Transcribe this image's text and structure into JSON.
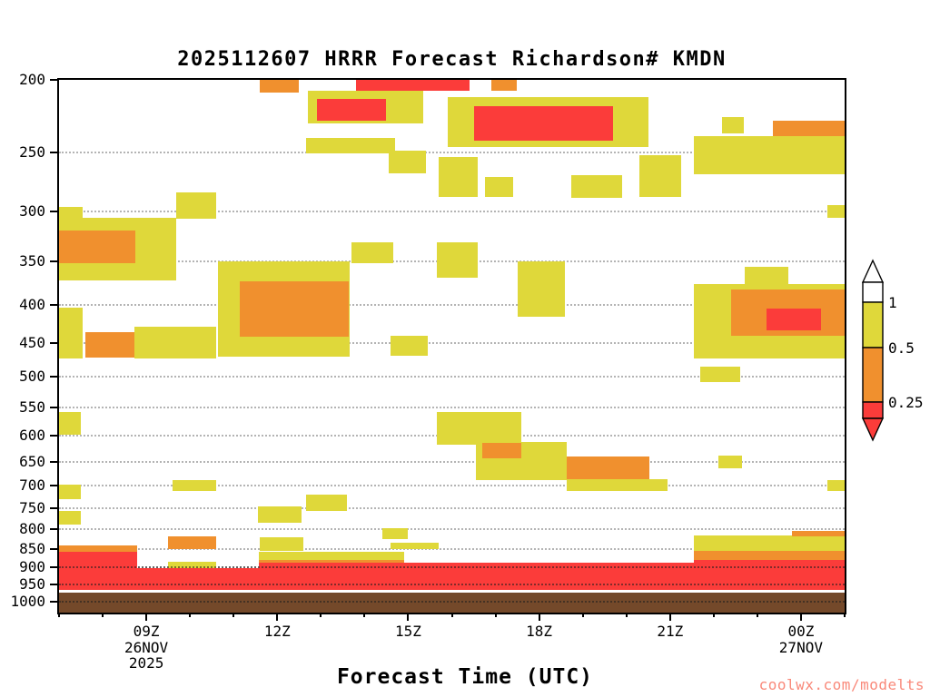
{
  "title": "2025112607 HRRR Forecast Richardson# KMDN",
  "xlabel": "Forecast Time (UTC)",
  "watermark": "coolwx.com/modelts",
  "colors": {
    "yellow": "#dfd83a",
    "orange": "#f0902e",
    "red": "#fb3c3a",
    "ground": "#74492a",
    "white_line": "#ffffff",
    "axis": "#000000",
    "watermark": "#f9897a"
  },
  "chart_data": {
    "type": "heatmap",
    "title": "2025112607 HRRR Forecast Richardson# KMDN",
    "xlabel": "Forecast Time (UTC)",
    "x_axis": {
      "unit": "hours UTC since 00Z 26 Nov 2025",
      "range": [
        7,
        25
      ],
      "major_ticks": [
        {
          "hour": 9,
          "label": "09Z",
          "sub": "26NOV",
          "sub2": "2025"
        },
        {
          "hour": 12,
          "label": "12Z"
        },
        {
          "hour": 15,
          "label": "15Z"
        },
        {
          "hour": 18,
          "label": "18Z"
        },
        {
          "hour": 21,
          "label": "21Z"
        },
        {
          "hour": 24,
          "label": "00Z",
          "sub": "27NOV"
        }
      ]
    },
    "y_axis": {
      "unit": "hPa",
      "scale": "log",
      "range": [
        200,
        1035
      ],
      "ticks": [
        200,
        250,
        300,
        350,
        400,
        450,
        500,
        550,
        600,
        650,
        700,
        750,
        800,
        850,
        900,
        950,
        1000
      ],
      "overlay_gridlines": [
        900,
        950,
        1000
      ]
    },
    "legend": {
      "labels": [
        "1",
        "0.5",
        "0.25"
      ],
      "segment_colors": [
        "white",
        "yellow",
        "orange",
        "red"
      ],
      "bins": [
        {
          "color": "white",
          "range": "> 1"
        },
        {
          "color": "yellow",
          "range": "0.5 to 1"
        },
        {
          "color": "orange",
          "range": "0.25 to 0.5"
        },
        {
          "color": "red",
          "range": "< 0.25"
        },
        {
          "color": "ground",
          "range": "below surface"
        }
      ]
    },
    "cells": [
      {
        "c": "o",
        "t": [
          11.6,
          12.5
        ],
        "p": [
          200,
          208
        ]
      },
      {
        "c": "r",
        "t": [
          13.8,
          16.4
        ],
        "p": [
          200,
          207
        ]
      },
      {
        "c": "o",
        "t": [
          16.9,
          17.5
        ],
        "p": [
          200,
          207
        ]
      },
      {
        "c": "y",
        "t": [
          12.7,
          15.35
        ],
        "p": [
          207,
          229
        ]
      },
      {
        "c": "r",
        "t": [
          12.9,
          14.5
        ],
        "p": [
          212,
          227
        ]
      },
      {
        "c": "y",
        "t": [
          12.66,
          14.7
        ],
        "p": [
          239,
          251
        ]
      },
      {
        "c": "y",
        "t": [
          15.9,
          20.5
        ],
        "p": [
          211,
          246
        ]
      },
      {
        "c": "r",
        "t": [
          16.5,
          19.7
        ],
        "p": [
          217,
          241
        ]
      },
      {
        "c": "y",
        "t": [
          14.55,
          15.4
        ],
        "p": [
          249,
          267
        ]
      },
      {
        "c": "y",
        "t": [
          15.7,
          16.6
        ],
        "p": [
          254,
          287
        ]
      },
      {
        "c": "y",
        "t": [
          16.75,
          17.4
        ],
        "p": [
          270,
          287
        ]
      },
      {
        "c": "y",
        "t": [
          18.74,
          19.9
        ],
        "p": [
          268,
          288
        ]
      },
      {
        "c": "y",
        "t": [
          20.3,
          21.25
        ],
        "p": [
          252,
          287
        ]
      },
      {
        "c": "y",
        "t": [
          22.2,
          22.7
        ],
        "p": [
          224,
          236
        ]
      },
      {
        "c": "o",
        "t": [
          23.35,
          25.0
        ],
        "p": [
          227,
          248
        ]
      },
      {
        "c": "y",
        "t": [
          21.55,
          25.0
        ],
        "p": [
          238,
          268
        ]
      },
      {
        "c": "y",
        "t": [
          24.6,
          25.0
        ],
        "p": [
          294,
          306
        ]
      },
      {
        "c": "y",
        "t": [
          7.0,
          7.55
        ],
        "p": [
          296,
          308
        ]
      },
      {
        "c": "y",
        "t": [
          9.68,
          10.6
        ],
        "p": [
          283,
          307
        ]
      },
      {
        "c": "y",
        "t": [
          7.0,
          9.68
        ],
        "p": [
          306,
          371
        ]
      },
      {
        "c": "o",
        "t": [
          7.0,
          8.75
        ],
        "p": [
          318,
          352
        ]
      },
      {
        "c": "y",
        "t": [
          10.65,
          13.65
        ],
        "p": [
          350,
          470
        ]
      },
      {
        "c": "o",
        "t": [
          11.15,
          13.65
        ],
        "p": [
          372,
          442
        ]
      },
      {
        "c": "y",
        "t": [
          7.0,
          7.55
        ],
        "p": [
          404,
          473
        ]
      },
      {
        "c": "o",
        "t": [
          7.6,
          8.72
        ],
        "p": [
          436,
          471
        ]
      },
      {
        "c": "y",
        "t": [
          8.72,
          10.6
        ],
        "p": [
          428,
          472
        ]
      },
      {
        "c": "y",
        "t": [
          13.7,
          14.65
        ],
        "p": [
          330,
          352
        ]
      },
      {
        "c": "y",
        "t": [
          15.66,
          16.6
        ],
        "p": [
          330,
          368
        ]
      },
      {
        "c": "y",
        "t": [
          17.5,
          18.6
        ],
        "p": [
          350,
          415
        ]
      },
      {
        "c": "y",
        "t": [
          14.6,
          15.45
        ],
        "p": [
          440,
          468
        ]
      },
      {
        "c": "y",
        "t": [
          22.7,
          23.7
        ],
        "p": [
          356,
          376
        ]
      },
      {
        "c": "y",
        "t": [
          21.55,
          25.0
        ],
        "p": [
          375,
          473
        ]
      },
      {
        "c": "o",
        "t": [
          22.4,
          25.0
        ],
        "p": [
          382,
          440
        ]
      },
      {
        "c": "r",
        "t": [
          23.2,
          24.45
        ],
        "p": [
          405,
          433
        ]
      },
      {
        "c": "y",
        "t": [
          21.68,
          22.6
        ],
        "p": [
          485,
          508
        ]
      },
      {
        "c": "y",
        "t": [
          7.0,
          7.5
        ],
        "p": [
          558,
          598
        ]
      },
      {
        "c": "y",
        "t": [
          7.0,
          7.5
        ],
        "p": [
          698,
          730
        ]
      },
      {
        "c": "y",
        "t": [
          7.0,
          7.5
        ],
        "p": [
          756,
          790
        ]
      },
      {
        "c": "y",
        "t": [
          15.66,
          17.6
        ],
        "p": [
          558,
          617
        ]
      },
      {
        "c": "y",
        "t": [
          16.55,
          18.63
        ],
        "p": [
          612,
          688
        ]
      },
      {
        "c": "o",
        "t": [
          16.7,
          17.6
        ],
        "p": [
          613,
          643
        ]
      },
      {
        "c": "o",
        "t": [
          18.63,
          20.52
        ],
        "p": [
          640,
          686
        ]
      },
      {
        "c": "y",
        "t": [
          18.63,
          20.95
        ],
        "p": [
          686,
          712
        ]
      },
      {
        "c": "y",
        "t": [
          22.1,
          22.66
        ],
        "p": [
          638,
          663
        ]
      },
      {
        "c": "y",
        "t": [
          9.6,
          10.6
        ],
        "p": [
          688,
          712
        ]
      },
      {
        "c": "y",
        "t": [
          12.66,
          13.6
        ],
        "p": [
          720,
          757
        ]
      },
      {
        "c": "y",
        "t": [
          24.6,
          25.0
        ],
        "p": [
          688,
          712
        ]
      },
      {
        "c": "y",
        "t": [
          11.55,
          12.56
        ],
        "p": [
          745,
          785
        ]
      },
      {
        "c": "y",
        "t": [
          14.4,
          15.0
        ],
        "p": [
          797,
          826
        ]
      },
      {
        "c": "o",
        "t": [
          9.5,
          10.6
        ],
        "p": [
          818,
          851
        ]
      },
      {
        "c": "y",
        "t": [
          11.6,
          12.6
        ],
        "p": [
          820,
          855
        ]
      },
      {
        "c": "y",
        "t": [
          14.6,
          15.7
        ],
        "p": [
          833,
          851
        ]
      },
      {
        "c": "y",
        "t": [
          21.55,
          25.0
        ],
        "p": [
          815,
          855
        ]
      },
      {
        "c": "o",
        "t": [
          23.8,
          25.0
        ],
        "p": [
          805,
          818
        ]
      },
      {
        "c": "o",
        "t": [
          21.55,
          25.0
        ],
        "p": [
          855,
          880
        ]
      },
      {
        "c": "o",
        "t": [
          7.0,
          8.78
        ],
        "p": [
          840,
          858
        ]
      },
      {
        "c": "r",
        "t": [
          7.0,
          8.78
        ],
        "p": [
          858,
          965
        ]
      },
      {
        "c": "r",
        "t": [
          8.78,
          11.57
        ],
        "p": [
          902,
          965
        ]
      },
      {
        "c": "y",
        "t": [
          9.5,
          10.6
        ],
        "p": [
          885,
          902
        ]
      },
      {
        "c": "y",
        "t": [
          11.57,
          14.9
        ],
        "p": [
          858,
          880
        ]
      },
      {
        "c": "o",
        "t": [
          11.57,
          14.9
        ],
        "p": [
          880,
          888
        ]
      },
      {
        "c": "r",
        "t": [
          11.57,
          21.55
        ],
        "p": [
          888,
          965
        ]
      },
      {
        "c": "r",
        "t": [
          21.55,
          25.0
        ],
        "p": [
          880,
          965
        ]
      },
      {
        "c": "w",
        "t": [
          7.0,
          25.0
        ],
        "p": [
          965,
          974
        ]
      },
      {
        "c": "g",
        "t": [
          7.0,
          25.0
        ],
        "p": [
          974,
          1035
        ]
      }
    ]
  }
}
